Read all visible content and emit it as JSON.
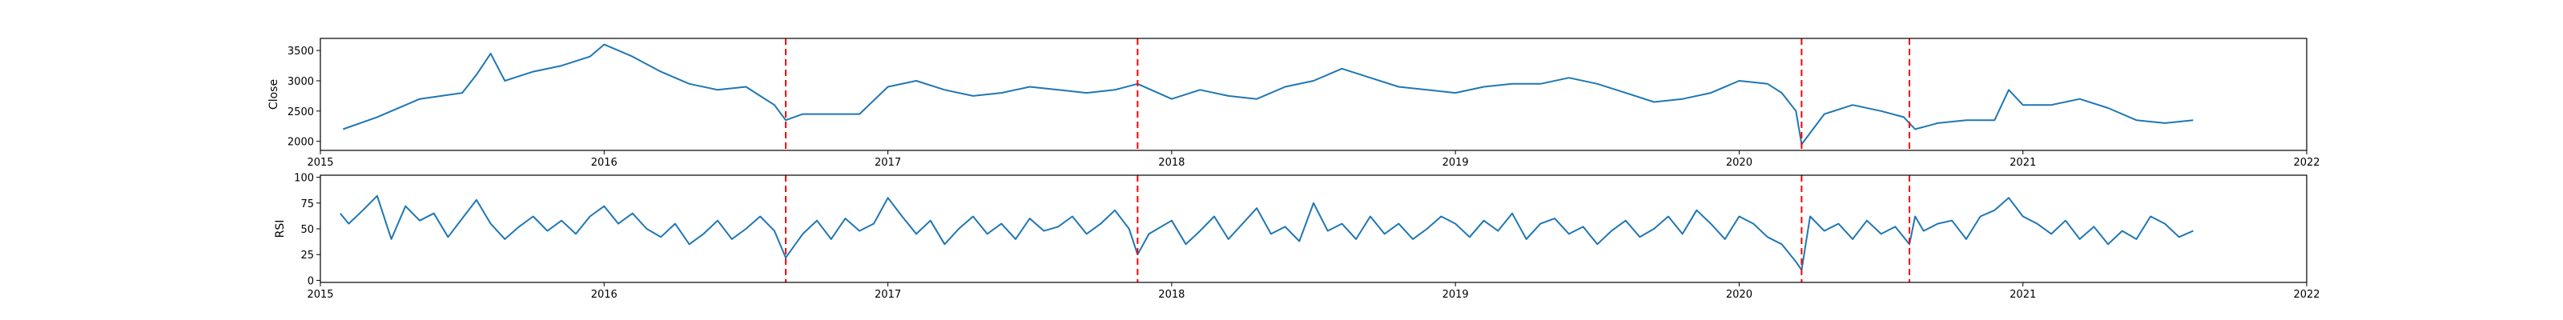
{
  "figure": {
    "panels": [
      {
        "id": "close",
        "ylabel": "Close",
        "yticks": [
          2000,
          2500,
          3000,
          3500
        ],
        "ylim": [
          1850,
          3700
        ]
      },
      {
        "id": "rsi",
        "ylabel": "RSI",
        "yticks": [
          0,
          25,
          50,
          75,
          100
        ],
        "ylim": [
          -2,
          102
        ]
      }
    ],
    "xticks": [
      "2015",
      "2016",
      "2017",
      "2018",
      "2019",
      "2020",
      "2021",
      "2022"
    ],
    "xlim": [
      2015.0,
      2022.0
    ]
  },
  "chart_data": [
    {
      "type": "line",
      "ylabel": "Close",
      "xlim": [
        2015.0,
        2022.0
      ],
      "ylim": [
        1850,
        3700
      ],
      "grid": false,
      "series": [
        {
          "color": "#1f77b4",
          "x": [
            2015.08,
            2015.2,
            2015.35,
            2015.5,
            2015.55,
            2015.6,
            2015.65,
            2015.75,
            2015.85,
            2015.95,
            2016.0,
            2016.05,
            2016.1,
            2016.2,
            2016.3,
            2016.4,
            2016.5,
            2016.55,
            2016.6,
            2016.64,
            2016.7,
            2016.8,
            2016.9,
            2017.0,
            2017.1,
            2017.2,
            2017.3,
            2017.4,
            2017.5,
            2017.6,
            2017.7,
            2017.8,
            2017.88,
            2018.0,
            2018.1,
            2018.2,
            2018.3,
            2018.4,
            2018.5,
            2018.6,
            2018.7,
            2018.8,
            2018.9,
            2019.0,
            2019.1,
            2019.2,
            2019.3,
            2019.4,
            2019.5,
            2019.6,
            2019.7,
            2019.8,
            2019.9,
            2020.0,
            2020.1,
            2020.15,
            2020.2,
            2020.22,
            2020.3,
            2020.4,
            2020.5,
            2020.58,
            2020.62,
            2020.7,
            2020.8,
            2020.9,
            2020.95,
            2021.0,
            2021.1,
            2021.2,
            2021.3,
            2021.4,
            2021.5,
            2021.6
          ],
          "y": [
            2200,
            2400,
            2700,
            2800,
            3100,
            3450,
            3000,
            3150,
            3250,
            3400,
            3600,
            3500,
            3400,
            3150,
            2950,
            2850,
            2900,
            2750,
            2600,
            2350,
            2450,
            2450,
            2450,
            2900,
            3000,
            2850,
            2750,
            2800,
            2900,
            2850,
            2800,
            2850,
            2950,
            2700,
            2850,
            2750,
            2700,
            2900,
            3000,
            3200,
            3050,
            2900,
            2850,
            2800,
            2900,
            2950,
            2950,
            3050,
            2950,
            2800,
            2650,
            2700,
            2800,
            3000,
            2950,
            2800,
            2500,
            1950,
            2450,
            2600,
            2500,
            2400,
            2200,
            2300,
            2350,
            2350,
            2850,
            2600,
            2600,
            2700,
            2550,
            2350,
            2300,
            2350
          ]
        }
      ],
      "vlines": [
        2016.64,
        2017.88,
        2020.22,
        2020.6
      ]
    },
    {
      "type": "line",
      "ylabel": "RSI",
      "xlim": [
        2015.0,
        2022.0
      ],
      "ylim": [
        -2,
        102
      ],
      "grid": false,
      "series": [
        {
          "color": "#1f77b4",
          "x": [
            2015.07,
            2015.1,
            2015.15,
            2015.2,
            2015.25,
            2015.3,
            2015.35,
            2015.4,
            2015.45,
            2015.5,
            2015.55,
            2015.6,
            2015.65,
            2015.7,
            2015.75,
            2015.8,
            2015.85,
            2015.9,
            2015.95,
            2016.0,
            2016.05,
            2016.1,
            2016.15,
            2016.2,
            2016.25,
            2016.3,
            2016.35,
            2016.4,
            2016.45,
            2016.5,
            2016.55,
            2016.6,
            2016.64,
            2016.7,
            2016.75,
            2016.8,
            2016.85,
            2016.9,
            2016.95,
            2017.0,
            2017.05,
            2017.1,
            2017.15,
            2017.2,
            2017.25,
            2017.3,
            2017.35,
            2017.4,
            2017.45,
            2017.5,
            2017.55,
            2017.6,
            2017.65,
            2017.7,
            2017.75,
            2017.8,
            2017.85,
            2017.88,
            2017.92,
            2018.0,
            2018.05,
            2018.1,
            2018.15,
            2018.2,
            2018.25,
            2018.3,
            2018.35,
            2018.4,
            2018.45,
            2018.5,
            2018.55,
            2018.6,
            2018.65,
            2018.7,
            2018.75,
            2018.8,
            2018.85,
            2018.9,
            2018.95,
            2019.0,
            2019.05,
            2019.1,
            2019.15,
            2019.2,
            2019.25,
            2019.3,
            2019.35,
            2019.4,
            2019.45,
            2019.5,
            2019.55,
            2019.6,
            2019.65,
            2019.7,
            2019.75,
            2019.8,
            2019.85,
            2019.9,
            2019.95,
            2020.0,
            2020.05,
            2020.1,
            2020.15,
            2020.2,
            2020.22,
            2020.25,
            2020.3,
            2020.35,
            2020.4,
            2020.45,
            2020.5,
            2020.55,
            2020.6,
            2020.62,
            2020.65,
            2020.7,
            2020.75,
            2020.8,
            2020.85,
            2020.9,
            2020.95,
            2021.0,
            2021.05,
            2021.1,
            2021.15,
            2021.2,
            2021.25,
            2021.3,
            2021.35,
            2021.4,
            2021.45,
            2021.5,
            2021.55,
            2021.6
          ],
          "y": [
            65,
            55,
            68,
            82,
            40,
            72,
            58,
            65,
            42,
            60,
            78,
            55,
            40,
            52,
            62,
            48,
            58,
            45,
            62,
            72,
            55,
            65,
            50,
            42,
            55,
            35,
            45,
            58,
            40,
            50,
            62,
            48,
            22,
            45,
            58,
            40,
            60,
            48,
            55,
            80,
            62,
            45,
            58,
            35,
            50,
            62,
            45,
            55,
            40,
            60,
            48,
            52,
            62,
            45,
            55,
            68,
            50,
            25,
            45,
            58,
            35,
            48,
            62,
            40,
            55,
            70,
            45,
            52,
            38,
            75,
            48,
            55,
            40,
            62,
            45,
            55,
            40,
            50,
            62,
            55,
            42,
            58,
            48,
            65,
            40,
            55,
            60,
            45,
            52,
            35,
            48,
            58,
            42,
            50,
            62,
            45,
            68,
            55,
            40,
            62,
            55,
            42,
            35,
            18,
            10,
            62,
            48,
            55,
            40,
            58,
            45,
            52,
            35,
            62,
            48,
            55,
            58,
            40,
            62,
            68,
            80,
            62,
            55,
            45,
            58,
            40,
            52,
            35,
            48,
            40,
            62,
            55,
            42,
            48
          ]
        }
      ],
      "vlines": [
        2016.64,
        2017.88,
        2020.22,
        2020.6
      ]
    }
  ]
}
